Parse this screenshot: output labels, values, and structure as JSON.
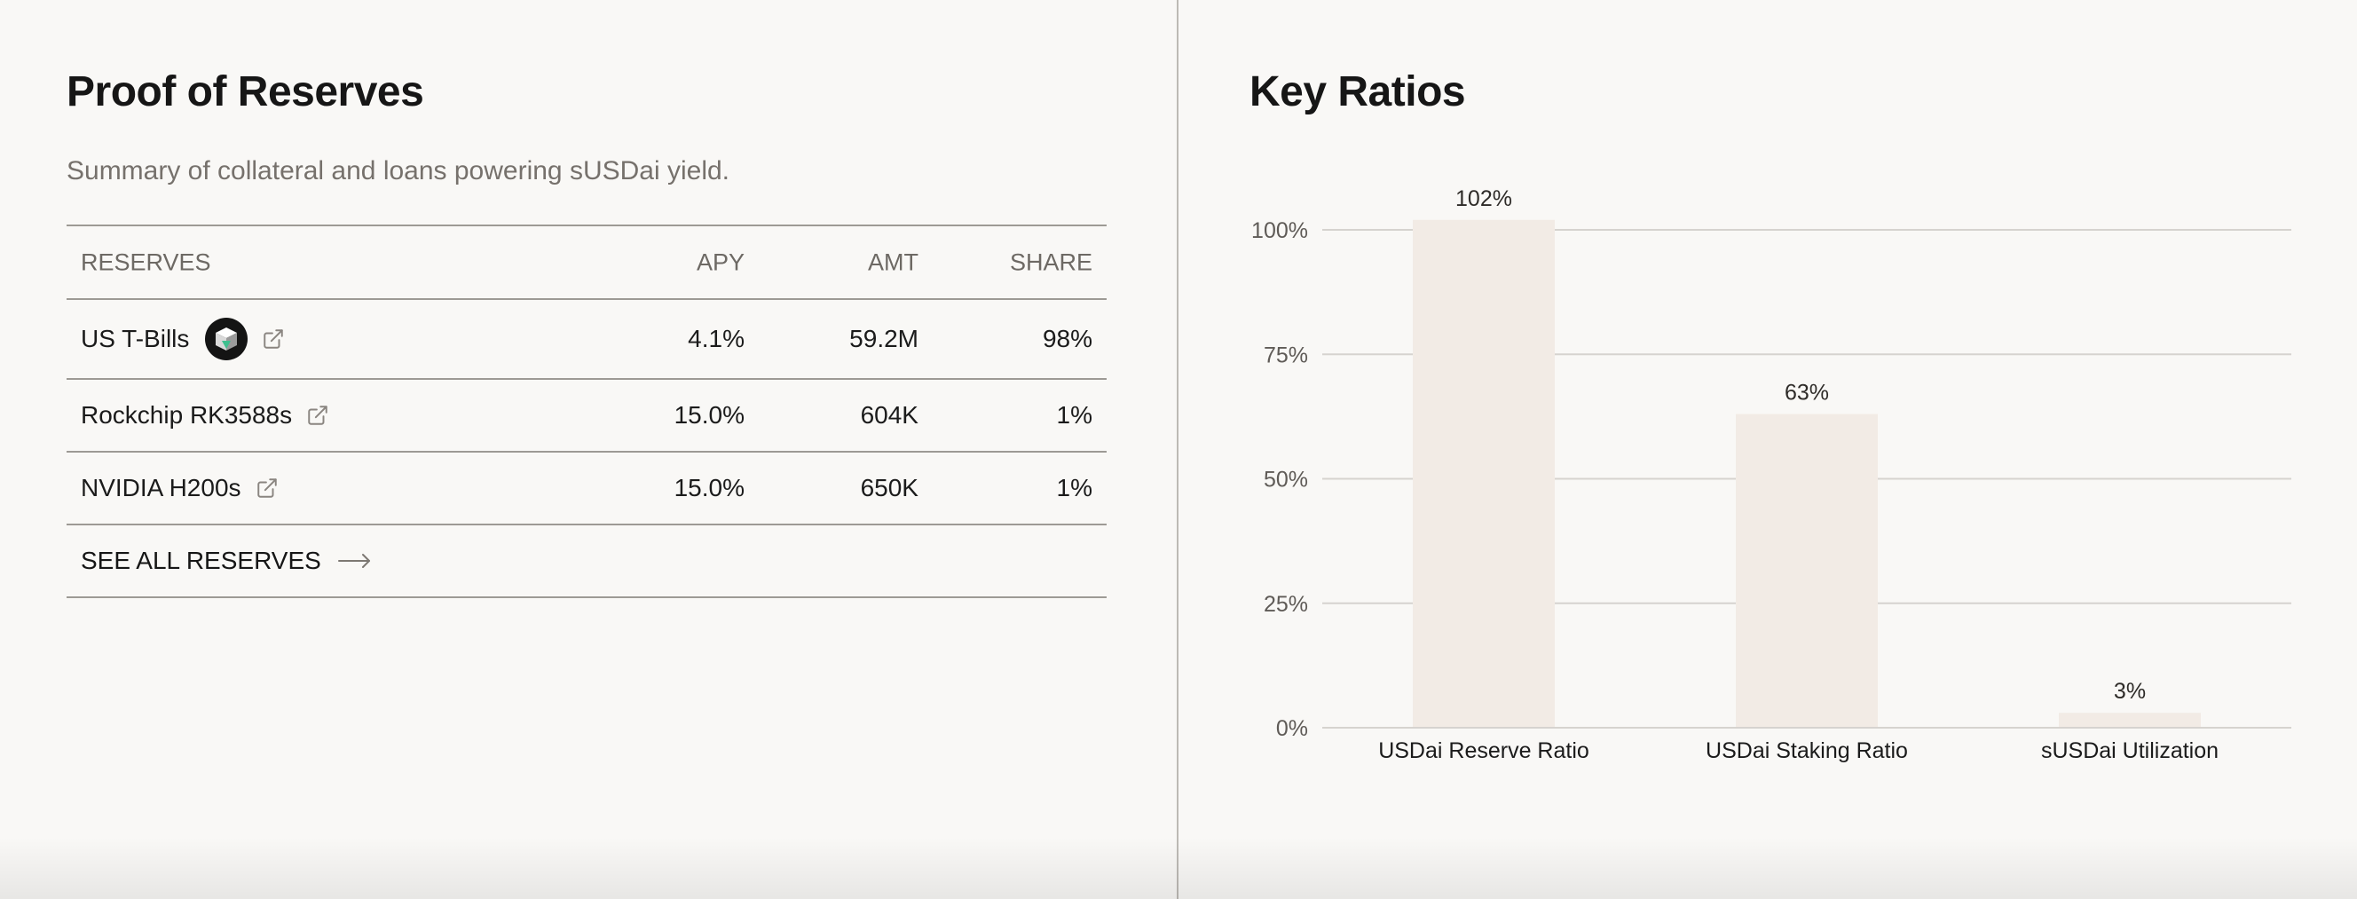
{
  "reserves": {
    "title": "Proof of Reserves",
    "subtitle": "Summary of collateral and loans powering sUSDai yield.",
    "columns": {
      "reserves": "RESERVES",
      "apy": "APY",
      "amt": "AMT",
      "share": "SHARE"
    },
    "rows": [
      {
        "name": "US T-Bills",
        "apy": "4.1%",
        "amt": "59.2M",
        "share": "98%"
      },
      {
        "name": "Rockchip RK3588s",
        "apy": "15.0%",
        "amt": "604K",
        "share": "1%"
      },
      {
        "name": "NVIDIA H200s",
        "apy": "15.0%",
        "amt": "650K",
        "share": "1%"
      }
    ],
    "see_all_label": "SEE ALL RESERVES",
    "icons": {
      "token": "t-bills-token-icon",
      "external": "external-link-icon",
      "arrow": "arrow-right-icon"
    }
  },
  "ratios": {
    "title": "Key Ratios"
  },
  "chart_data": {
    "type": "bar",
    "categories": [
      "USDai Reserve Ratio",
      "USDai Staking Ratio",
      "sUSDai Utilization"
    ],
    "values": [
      102,
      63,
      3
    ],
    "data_labels": [
      "102%",
      "63%",
      "3%"
    ],
    "ylim": [
      0,
      100
    ],
    "yticks": [
      0,
      25,
      50,
      75,
      100
    ],
    "ytick_labels": [
      "0%",
      "25%",
      "50%",
      "75%",
      "100%"
    ],
    "grid": true,
    "bar_color": "#f2ebe5",
    "grid_color": "#d6d3cf"
  }
}
